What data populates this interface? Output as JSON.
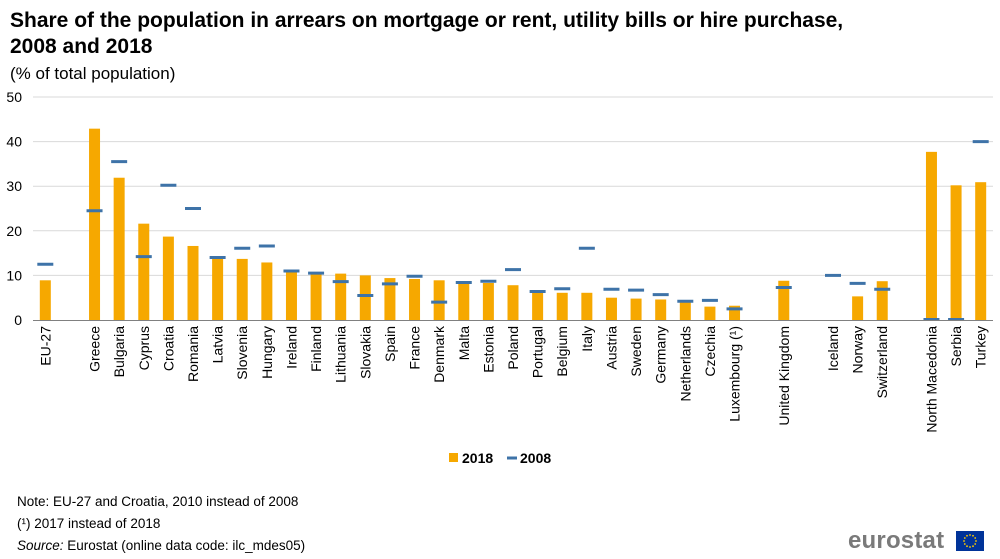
{
  "chart_data": {
    "type": "bar",
    "title": "Share of the population in arrears on mortgage or rent, utility bills or hire purchase, 2008 and 2018",
    "subtitle": "(% of total population)",
    "ylim": [
      0,
      50
    ],
    "yticks": [
      0,
      10,
      20,
      30,
      40,
      50
    ],
    "grid": true,
    "legend_placement": "bottom",
    "categories": [
      "EU-27",
      "Greece",
      "Bulgaria",
      "Cyprus",
      "Croatia",
      "Romania",
      "Latvia",
      "Slovenia",
      "Hungary",
      "Ireland",
      "Finland",
      "Lithuania",
      "Slovakia",
      "Spain",
      "France",
      "Denmark",
      "Malta",
      "Estonia",
      "Poland",
      "Portugal",
      "Belgium",
      "Italy",
      "Austria",
      "Sweden",
      "Germany",
      "Netherlands",
      "Czechia",
      "Luxembourg (¹)",
      "United Kingdom",
      "Iceland",
      "Norway",
      "Switzerland",
      "North Macedonia",
      "Serbia",
      "Turkey"
    ],
    "groups": [
      1,
      27,
      1,
      3,
      3
    ],
    "series": [
      {
        "name": "2018",
        "kind": "bar",
        "color": "#F6A800",
        "values": [
          8.9,
          42.9,
          31.9,
          21.6,
          18.7,
          16.6,
          14.0,
          13.7,
          12.9,
          11.0,
          10.5,
          10.4,
          10.0,
          9.4,
          9.2,
          8.9,
          8.5,
          8.3,
          7.8,
          6.5,
          6.1,
          6.1,
          5.0,
          4.8,
          4.6,
          4.1,
          3.0,
          3.2,
          8.8,
          null,
          5.3,
          8.7,
          37.7,
          30.2,
          30.9
        ]
      },
      {
        "name": "2008",
        "kind": "marker",
        "color": "#3E73A8",
        "values": [
          12.5,
          24.5,
          35.5,
          14.2,
          30.2,
          25.0,
          14.0,
          16.1,
          16.6,
          11.0,
          10.5,
          8.6,
          5.5,
          8.1,
          9.8,
          4.0,
          8.4,
          8.7,
          11.3,
          6.4,
          7.0,
          16.1,
          6.9,
          6.7,
          5.7,
          4.2,
          4.4,
          2.5,
          7.3,
          10.0,
          8.2,
          6.9,
          0.1,
          0.1,
          40.0
        ]
      }
    ]
  },
  "notes": {
    "line1": "Note: EU-27 and Croatia, 2010 instead of 2008",
    "line2": "(¹) 2017 instead of 2018",
    "source_label": "Source:",
    "source_text": " Eurostat (online data code: ilc_mdes05)"
  },
  "logo": {
    "text": "eurostat",
    "text_color": "#7a7a7a",
    "flag_color": "#003399",
    "star_color": "#FFCC00"
  },
  "colors": {
    "grid": "#d9d9d9",
    "axis": "#808080"
  }
}
